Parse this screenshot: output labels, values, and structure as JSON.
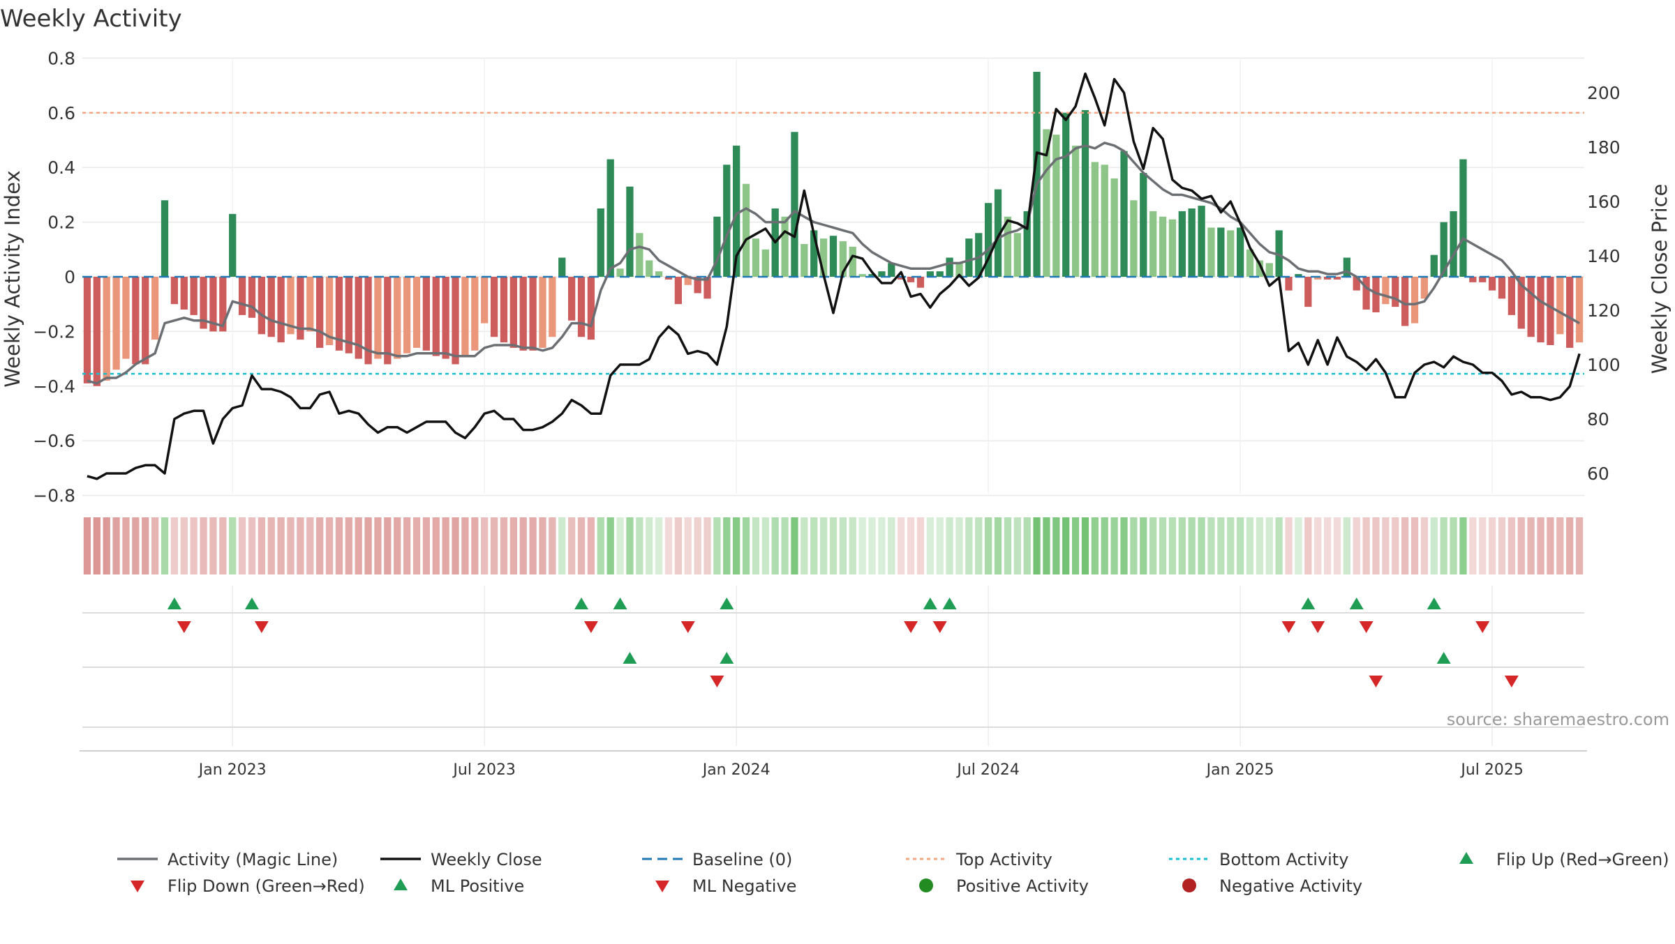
{
  "chart_data": {
    "type": "bar",
    "title": "Weekly Activity",
    "source": "source: sharemaestro.com",
    "y_left_label": "Weekly Activity Index",
    "y_right_label": "Weekly Close Price",
    "y_left_range": [
      -0.85,
      0.8
    ],
    "y_left_ticks": [
      0.8,
      0.6,
      0.4,
      0.2,
      0,
      -0.2,
      -0.4,
      -0.6,
      -0.8
    ],
    "y_left_tick_labels": [
      "0.8",
      "0.6",
      "0.4",
      "0.2",
      "0",
      "−0.2",
      "−0.4",
      "−0.6",
      "−0.8"
    ],
    "y_right_range": [
      50,
      215
    ],
    "y_right_ticks": [
      200,
      180,
      160,
      140,
      120,
      100,
      80,
      60
    ],
    "y_right_tick_labels": [
      "200",
      "180",
      "160",
      "140",
      "120",
      "100",
      "80",
      "60"
    ],
    "x_tick_labels": [
      "Jan 2023",
      "Jul 2023",
      "Jan 2024",
      "Jul 2024",
      "Jan 2025",
      "Jul 2025"
    ],
    "x_tick_weeks": [
      15,
      41,
      67,
      93,
      119,
      145
    ],
    "top_activity": 0.6,
    "bottom_activity": -0.355,
    "activity": [
      -0.39,
      -0.4,
      -0.38,
      -0.34,
      -0.3,
      -0.32,
      -0.32,
      -0.23,
      0.28,
      -0.1,
      -0.12,
      -0.14,
      -0.19,
      -0.2,
      -0.2,
      0.23,
      -0.14,
      -0.15,
      -0.21,
      -0.22,
      -0.24,
      -0.21,
      -0.23,
      -0.2,
      -0.26,
      -0.25,
      -0.27,
      -0.28,
      -0.3,
      -0.32,
      -0.3,
      -0.32,
      -0.3,
      -0.28,
      -0.26,
      -0.27,
      -0.29,
      -0.3,
      -0.32,
      -0.29,
      -0.27,
      -0.17,
      -0.22,
      -0.24,
      -0.26,
      -0.27,
      -0.27,
      -0.26,
      -0.22,
      0.07,
      -0.16,
      -0.22,
      -0.23,
      0.25,
      0.43,
      0.03,
      0.33,
      0.16,
      0.06,
      0.02,
      -0.01,
      -0.1,
      -0.03,
      -0.06,
      -0.08,
      0.22,
      0.41,
      0.48,
      0.34,
      0.14,
      0.1,
      0.25,
      0.22,
      0.53,
      0.12,
      0.17,
      0.14,
      0.15,
      0.13,
      0.11,
      0.01,
      0.01,
      0.02,
      0.05,
      -0.01,
      -0.02,
      -0.04,
      0.02,
      0.02,
      0.07,
      0.05,
      0.14,
      0.16,
      0.27,
      0.32,
      0.22,
      0.16,
      0.24,
      0.75,
      0.54,
      0.52,
      0.6,
      0.48,
      0.61,
      0.42,
      0.41,
      0.36,
      0.46,
      0.28,
      0.38,
      0.24,
      0.22,
      0.21,
      0.24,
      0.25,
      0.26,
      0.18,
      0.18,
      0.17,
      0.18,
      0.1,
      0.06,
      0.05,
      0.17,
      -0.05,
      0.01,
      -0.11,
      -0.01,
      -0.01,
      -0.01,
      0.07,
      -0.05,
      -0.12,
      -0.13,
      -0.1,
      -0.11,
      -0.18,
      -0.17,
      -0.08,
      0.08,
      0.2,
      0.24,
      0.43,
      -0.02,
      -0.02,
      -0.05,
      -0.08,
      -0.14,
      -0.19,
      -0.22,
      -0.24,
      -0.25,
      -0.21,
      -0.26,
      -0.24
    ],
    "magic_line": [
      -0.38,
      -0.39,
      -0.37,
      -0.37,
      -0.35,
      -0.32,
      -0.3,
      -0.28,
      -0.17,
      -0.16,
      -0.15,
      -0.16,
      -0.16,
      -0.17,
      -0.18,
      -0.09,
      -0.1,
      -0.11,
      -0.14,
      -0.16,
      -0.17,
      -0.18,
      -0.19,
      -0.19,
      -0.2,
      -0.22,
      -0.23,
      -0.24,
      -0.25,
      -0.27,
      -0.28,
      -0.28,
      -0.29,
      -0.29,
      -0.28,
      -0.28,
      -0.28,
      -0.28,
      -0.29,
      -0.29,
      -0.29,
      -0.26,
      -0.25,
      -0.25,
      -0.25,
      -0.26,
      -0.26,
      -0.27,
      -0.26,
      -0.22,
      -0.17,
      -0.17,
      -0.18,
      -0.05,
      0.03,
      0.05,
      0.1,
      0.11,
      0.1,
      0.06,
      0.04,
      0.02,
      0.0,
      -0.01,
      -0.01,
      0.06,
      0.15,
      0.23,
      0.25,
      0.23,
      0.2,
      0.2,
      0.2,
      0.24,
      0.22,
      0.2,
      0.19,
      0.18,
      0.17,
      0.16,
      0.12,
      0.09,
      0.07,
      0.05,
      0.04,
      0.03,
      0.03,
      0.03,
      0.04,
      0.05,
      0.05,
      0.06,
      0.07,
      0.1,
      0.14,
      0.16,
      0.17,
      0.19,
      0.34,
      0.39,
      0.43,
      0.44,
      0.47,
      0.48,
      0.47,
      0.49,
      0.48,
      0.46,
      0.42,
      0.38,
      0.35,
      0.32,
      0.3,
      0.3,
      0.29,
      0.28,
      0.27,
      0.25,
      0.22,
      0.2,
      0.16,
      0.12,
      0.09,
      0.08,
      0.06,
      0.03,
      0.02,
      0.02,
      0.01,
      0.01,
      0.02,
      0.0,
      -0.04,
      -0.06,
      -0.07,
      -0.08,
      -0.1,
      -0.1,
      -0.09,
      -0.04,
      0.02,
      0.08,
      0.14,
      0.12,
      0.1,
      0.08,
      0.06,
      0.02,
      -0.03,
      -0.06,
      -0.09,
      -0.11,
      -0.13,
      -0.15,
      -0.17
    ],
    "weekly_close": [
      59,
      58,
      60,
      60,
      60,
      62,
      63,
      63,
      60,
      80,
      82,
      83,
      83,
      71,
      80,
      84,
      85,
      96,
      91,
      91,
      90,
      88,
      84,
      84,
      89,
      90,
      82,
      83,
      82,
      78,
      75,
      77,
      77,
      75,
      77,
      79,
      79,
      79,
      75,
      73,
      77,
      82,
      83,
      80,
      80,
      76,
      76,
      77,
      79,
      82,
      87,
      85,
      82,
      82,
      96,
      100,
      100,
      100,
      102,
      110,
      114,
      111,
      104,
      105,
      104,
      100,
      114,
      140,
      146,
      148,
      150,
      145,
      149,
      147,
      164,
      148,
      133,
      119,
      134,
      140,
      139,
      134,
      130,
      130,
      134,
      125,
      126,
      121,
      126,
      129,
      133,
      129,
      132,
      139,
      147,
      153,
      152,
      150,
      178,
      177,
      194,
      190,
      195,
      207,
      198,
      188,
      205,
      200,
      182,
      172,
      187,
      183,
      168,
      165,
      164,
      161,
      162,
      156,
      160,
      152,
      143,
      137,
      129,
      132,
      105,
      108,
      100,
      109,
      100,
      110,
      103,
      101,
      98,
      102,
      97,
      88,
      88,
      97,
      100,
      101,
      99,
      103,
      101,
      100,
      97,
      97,
      94,
      89,
      90,
      88,
      88,
      87,
      88,
      92,
      104
    ],
    "flip_up": [
      9,
      17,
      51,
      55,
      66,
      87,
      89,
      126,
      131,
      139
    ],
    "flip_down": [
      10,
      18,
      52,
      62,
      85,
      88,
      124,
      127,
      132,
      144
    ],
    "ml_positive": [
      56,
      66,
      140
    ],
    "ml_negative": [
      65,
      133,
      147
    ],
    "legend": [
      {
        "label": "Activity (Magic Line)",
        "symbol": "line-gray"
      },
      {
        "label": "Weekly Close",
        "symbol": "line-black"
      },
      {
        "label": "Baseline (0)",
        "symbol": "dash-blue"
      },
      {
        "label": "Top Activity",
        "symbol": "dot-orange"
      },
      {
        "label": "Bottom Activity",
        "symbol": "dot-cyan"
      },
      {
        "label": "Flip Up (Red→Green)",
        "symbol": "tri-up-green"
      },
      {
        "label": "Flip Down (Green→Red)",
        "symbol": "tri-down-red"
      },
      {
        "label": "ML Positive",
        "symbol": "tri-up-green"
      },
      {
        "label": "ML Negative",
        "symbol": "tri-down-red"
      },
      {
        "label": "Positive Activity",
        "symbol": "circle-green"
      },
      {
        "label": "Negative Activity",
        "symbol": "circle-red"
      }
    ],
    "colors": {
      "pos_dark": "#2e8a56",
      "pos_light": "#8cc587",
      "neg_dark": "#cd5c5c",
      "neg_light": "#e9967a",
      "magic": "#6b6f73",
      "close": "#111111",
      "baseline": "#1f77b4",
      "top": "#f4a582",
      "bottom": "#17becf",
      "up": "#1f9d55",
      "down": "#d62728",
      "pos_dot": "#228b22",
      "neg_dot": "#b22222"
    }
  }
}
